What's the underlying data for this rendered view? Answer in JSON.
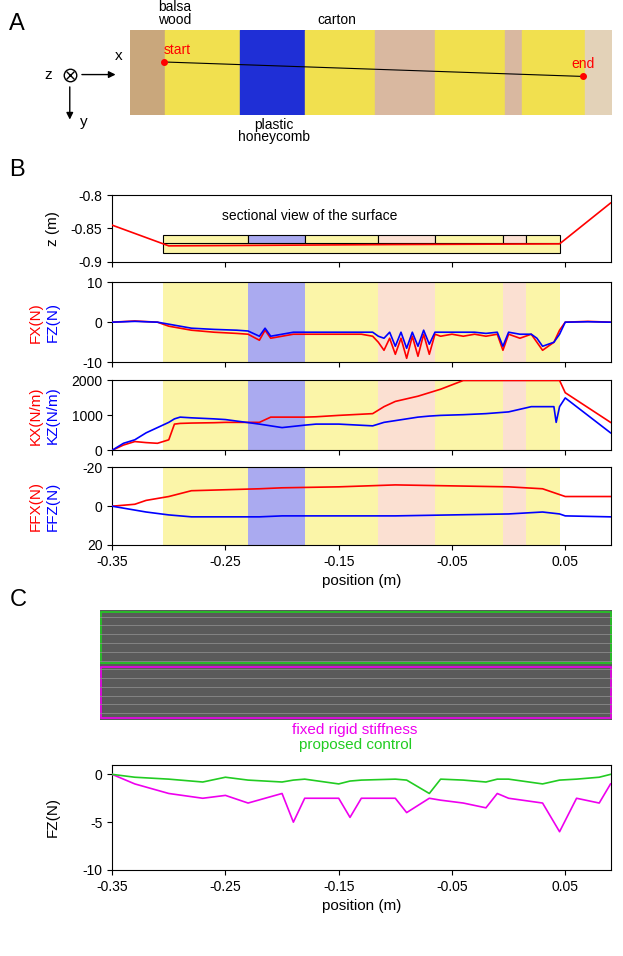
{
  "panel_labels": [
    "A",
    "B",
    "C"
  ],
  "photo": {
    "materials": [
      "balsa\nwood",
      "carton",
      "plastic\nhoneycomb"
    ],
    "points": [
      "start",
      "end"
    ],
    "frame_axes": [
      "z",
      "x",
      "y"
    ]
  },
  "chart_data": [
    {
      "type": "line",
      "tick_labels": "y",
      "ylabel": "z (m)",
      "annotation": "sectional view of the surface",
      "xlim": [
        -0.35,
        0.09
      ],
      "xticks": [
        -0.35,
        -0.25,
        -0.15,
        -0.05,
        0.05
      ],
      "ylim": [
        -0.9,
        -0.8
      ],
      "yticks": [
        -0.9,
        -0.85,
        -0.8
      ],
      "regions": [
        {
          "start": -0.305,
          "end": -0.23,
          "color": "#fbf5a8"
        },
        {
          "start": -0.23,
          "end": -0.18,
          "color": "#aaaaf0"
        },
        {
          "start": -0.18,
          "end": -0.115,
          "color": "#fbf5a8"
        },
        {
          "start": -0.115,
          "end": -0.065,
          "color": "#fbe0d2"
        },
        {
          "start": -0.065,
          "end": -0.005,
          "color": "#fbf5a8"
        },
        {
          "start": -0.005,
          "end": 0.015,
          "color": "#fbe0d2"
        },
        {
          "start": 0.015,
          "end": 0.045,
          "color": "#fbf5a8"
        }
      ],
      "x": [
        -0.35,
        -0.3,
        -0.1,
        0.045,
        0.09
      ],
      "series": [
        {
          "color": "red",
          "values": [
            -0.845,
            -0.876,
            -0.874,
            -0.873,
            -0.812
          ]
        }
      ]
    },
    {
      "type": "line",
      "tick_labels": "y",
      "xlim": [
        -0.35,
        0.09
      ],
      "xticks": [
        -0.35,
        -0.25,
        -0.15,
        -0.05,
        0.05
      ],
      "ylim": [
        -10,
        10
      ],
      "yticks": [
        -10,
        0,
        10
      ],
      "regions": [
        {
          "start": -0.305,
          "end": -0.23,
          "color": "#fbf5a8"
        },
        {
          "start": -0.23,
          "end": -0.18,
          "color": "#aaaaf0"
        },
        {
          "start": -0.18,
          "end": -0.115,
          "color": "#fbf5a8"
        },
        {
          "start": -0.115,
          "end": -0.065,
          "color": "#fbe0d2"
        },
        {
          "start": -0.065,
          "end": -0.005,
          "color": "#fbf5a8"
        },
        {
          "start": -0.005,
          "end": 0.015,
          "color": "#fbe0d2"
        },
        {
          "start": 0.015,
          "end": 0.045,
          "color": "#fbf5a8"
        }
      ],
      "x": [
        -0.35,
        -0.33,
        -0.31,
        -0.3,
        -0.28,
        -0.26,
        -0.24,
        -0.23,
        -0.22,
        -0.215,
        -0.21,
        -0.2,
        -0.19,
        -0.17,
        -0.15,
        -0.13,
        -0.12,
        -0.115,
        -0.11,
        -0.105,
        -0.1,
        -0.095,
        -0.09,
        -0.085,
        -0.08,
        -0.075,
        -0.07,
        -0.065,
        -0.06,
        -0.05,
        -0.04,
        -0.03,
        -0.02,
        -0.01,
        -0.005,
        0,
        0.01,
        0.02,
        0.025,
        0.03,
        0.04,
        0.045,
        0.05,
        0.07,
        0.09
      ],
      "series": [
        {
          "name": "FX(N)",
          "color": "red",
          "values": [
            0,
            0.3,
            0,
            -1,
            -2,
            -2.5,
            -2.8,
            -3,
            -4.5,
            -2,
            -4,
            -3.5,
            -3,
            -3,
            -3,
            -3,
            -3.5,
            -5,
            -7,
            -4,
            -8,
            -4,
            -9,
            -3.5,
            -8.5,
            -3,
            -8,
            -3,
            -3.5,
            -3,
            -3.5,
            -3,
            -3.5,
            -3,
            -7,
            -3,
            -4,
            -3,
            -5,
            -7,
            -5,
            -2,
            0,
            0.2,
            0
          ]
        },
        {
          "name": "FZ(N)",
          "color": "blue",
          "values": [
            0,
            0.2,
            0,
            -0.5,
            -1.5,
            -1.8,
            -2,
            -2.2,
            -3.5,
            -1.5,
            -3.5,
            -3,
            -2.5,
            -2.5,
            -2.5,
            -2.5,
            -2.5,
            -3.5,
            -4,
            -2.5,
            -6,
            -2.5,
            -6.5,
            -2.5,
            -6,
            -2,
            -5.5,
            -2.5,
            -2.5,
            -2.5,
            -2.5,
            -2.5,
            -2.8,
            -2.5,
            -6,
            -2.5,
            -3,
            -3,
            -4,
            -6,
            -5,
            -3,
            0,
            0.1,
            0
          ]
        }
      ]
    },
    {
      "type": "line",
      "tick_labels": "y",
      "xlim": [
        -0.35,
        0.09
      ],
      "xticks": [
        -0.35,
        -0.25,
        -0.15,
        -0.05,
        0.05
      ],
      "ylim": [
        0,
        2000
      ],
      "yticks": [
        0,
        1000,
        2000
      ],
      "regions": [
        {
          "start": -0.305,
          "end": -0.23,
          "color": "#fbf5a8"
        },
        {
          "start": -0.23,
          "end": -0.18,
          "color": "#aaaaf0"
        },
        {
          "start": -0.18,
          "end": -0.115,
          "color": "#fbf5a8"
        },
        {
          "start": -0.115,
          "end": -0.065,
          "color": "#fbe0d2"
        },
        {
          "start": -0.065,
          "end": -0.005,
          "color": "#fbf5a8"
        },
        {
          "start": -0.005,
          "end": 0.015,
          "color": "#fbe0d2"
        },
        {
          "start": 0.015,
          "end": 0.045,
          "color": "#fbf5a8"
        }
      ],
      "x": [
        -0.35,
        -0.34,
        -0.33,
        -0.32,
        -0.31,
        -0.3,
        -0.295,
        -0.29,
        -0.28,
        -0.26,
        -0.25,
        -0.22,
        -0.21,
        -0.2,
        -0.18,
        -0.17,
        -0.15,
        -0.12,
        -0.11,
        -0.1,
        -0.08,
        -0.07,
        -0.06,
        -0.04,
        -0.02,
        0,
        0.02,
        0.04,
        0.042,
        0.045,
        0.05,
        0.09
      ],
      "series": [
        {
          "name": "KX(N/m)",
          "color": "red",
          "values": [
            0,
            150,
            250,
            220,
            200,
            300,
            750,
            770,
            780,
            790,
            800,
            800,
            950,
            950,
            950,
            960,
            1000,
            1050,
            1250,
            1400,
            1550,
            1650,
            1750,
            2000,
            2000,
            2000,
            2000,
            2000,
            2000,
            2000,
            1650,
            800
          ]
        },
        {
          "name": "KZ(N/m)",
          "color": "blue",
          "values": [
            0,
            200,
            300,
            500,
            650,
            800,
            900,
            950,
            930,
            900,
            880,
            750,
            700,
            650,
            720,
            750,
            750,
            700,
            800,
            850,
            950,
            980,
            1000,
            1020,
            1050,
            1100,
            1250,
            1250,
            800,
            1250,
            1500,
            500
          ]
        }
      ]
    },
    {
      "type": "line",
      "xlabel": "position (m)",
      "xlim": [
        -0.35,
        0.09
      ],
      "xticks": [
        -0.35,
        -0.25,
        -0.15,
        -0.05,
        0.05
      ],
      "ylim": [
        20,
        -20
      ],
      "yticks": [
        -20,
        0,
        20
      ],
      "regions": [
        {
          "start": -0.305,
          "end": -0.23,
          "color": "#fbf5a8"
        },
        {
          "start": -0.23,
          "end": -0.18,
          "color": "#aaaaf0"
        },
        {
          "start": -0.18,
          "end": -0.115,
          "color": "#fbf5a8"
        },
        {
          "start": -0.115,
          "end": -0.065,
          "color": "#fbe0d2"
        },
        {
          "start": -0.065,
          "end": -0.005,
          "color": "#fbf5a8"
        },
        {
          "start": -0.005,
          "end": 0.015,
          "color": "#fbe0d2"
        },
        {
          "start": 0.015,
          "end": 0.045,
          "color": "#fbf5a8"
        }
      ],
      "x": [
        -0.35,
        -0.33,
        -0.32,
        -0.3,
        -0.28,
        -0.22,
        -0.2,
        -0.15,
        -0.1,
        -0.05,
        0,
        0.03,
        0.045,
        0.05,
        0.09
      ],
      "series": [
        {
          "name": "FFX(N)",
          "color": "red",
          "values": [
            0,
            -1,
            -3,
            -5,
            -8,
            -9,
            -9.5,
            -10,
            -11,
            -10.5,
            -10,
            -9,
            -6,
            -5,
            -5
          ]
        },
        {
          "name": "FFZ(N)",
          "color": "blue",
          "values": [
            0,
            2,
            3,
            4.5,
            5.5,
            5.5,
            5,
            5,
            5,
            4.5,
            4,
            3,
            4,
            5,
            5.5
          ]
        }
      ]
    },
    {
      "type": "line",
      "xlabel": "position (m)",
      "ylabel": "FZ(N)",
      "xlim": [
        -0.35,
        0.09
      ],
      "xticks": [
        -0.35,
        -0.25,
        -0.15,
        -0.05,
        0.05
      ],
      "ylim": [
        -10,
        1
      ],
      "yticks": [
        -10,
        -5,
        0
      ],
      "x": [
        -0.35,
        -0.33,
        -0.3,
        -0.27,
        -0.25,
        -0.23,
        -0.2,
        -0.19,
        -0.18,
        -0.15,
        -0.14,
        -0.13,
        -0.1,
        -0.09,
        -0.07,
        -0.06,
        -0.04,
        -0.02,
        -0.01,
        0,
        0.03,
        0.045,
        0.06,
        0.08,
        0.09
      ],
      "series": [
        {
          "name": "fixed rigid stiffness",
          "color": "#ee00ee",
          "values": [
            0,
            -1,
            -2,
            -2.5,
            -2.2,
            -3,
            -2,
            -5,
            -2.5,
            -2.5,
            -4.5,
            -2.5,
            -2.5,
            -4,
            -2.5,
            -2.7,
            -3,
            -3.5,
            -2,
            -2.5,
            -3,
            -6,
            -2.5,
            -3,
            -1
          ]
        },
        {
          "name": "proposed control",
          "color": "#22cc22",
          "values": [
            0,
            -0.3,
            -0.5,
            -0.8,
            -0.3,
            -0.6,
            -0.8,
            -0.6,
            -0.5,
            -1,
            -0.7,
            -0.6,
            -0.5,
            -0.6,
            -2,
            -0.5,
            -0.6,
            -0.8,
            -0.5,
            -0.5,
            -1,
            -0.6,
            -0.5,
            -0.3,
            0
          ]
        }
      ]
    }
  ]
}
